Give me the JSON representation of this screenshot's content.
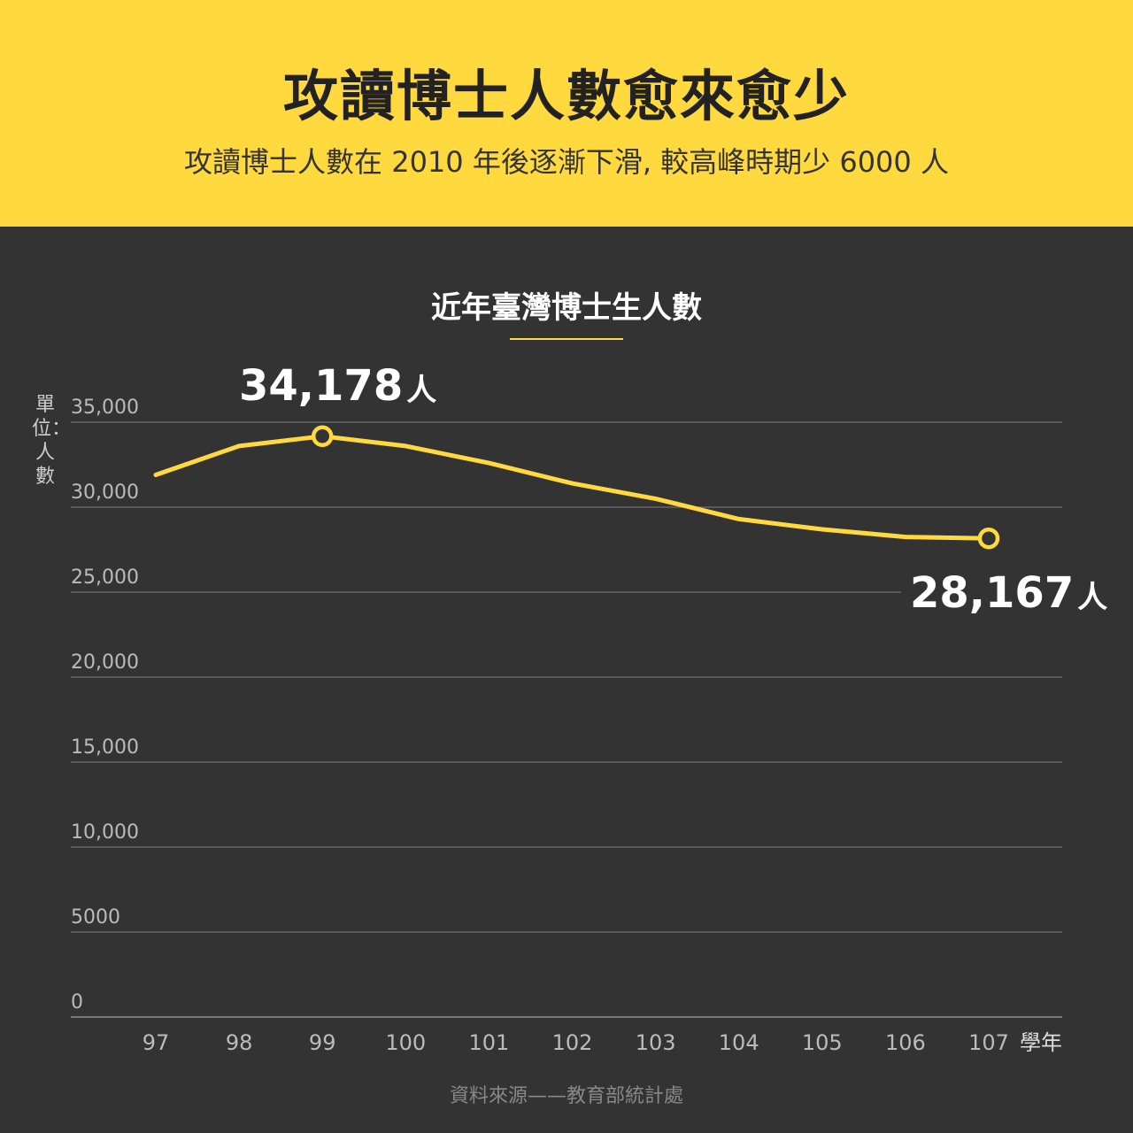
{
  "header": {
    "title": "攻讀博士人數愈來愈少",
    "subtitle": "攻讀博士人數在 2010 年後逐漸下滑, 較高峰時期少 6000 人"
  },
  "chart": {
    "title": "近年臺灣博士生人數",
    "unit_label": "單位：人數",
    "x_unit": "學年",
    "source": "資料來源——教育部統計處",
    "callouts": [
      {
        "number": "34,178",
        "unit": "人"
      },
      {
        "number": "28,167",
        "unit": "人"
      }
    ]
  },
  "colors": {
    "header_bg": "#FFD93D",
    "panel_bg": "#333333",
    "line": "#FFD93D",
    "grid": "#666666"
  },
  "chart_data": {
    "type": "line",
    "title": "近年臺灣博士生人數",
    "xlabel": "學年",
    "ylabel": "單位：人數",
    "x": [
      "97",
      "98",
      "99",
      "100",
      "101",
      "102",
      "103",
      "104",
      "105",
      "106",
      "107"
    ],
    "series": [
      {
        "values": [
          31900,
          33600,
          34178,
          33600,
          32600,
          31400,
          30500,
          29300,
          28700,
          28250,
          28167
        ]
      }
    ],
    "yticks": [
      0,
      5000,
      10000,
      15000,
      20000,
      25000,
      30000,
      35000
    ],
    "ytick_labels": [
      "0",
      "5000",
      "10,000",
      "15,000",
      "20,000",
      "25,000",
      "30,000",
      "35,000"
    ],
    "ylim": [
      0,
      35000
    ],
    "grid": true,
    "highlighted_points": [
      {
        "x": "99",
        "value": 34178,
        "label": "34,178人"
      },
      {
        "x": "107",
        "value": 28167,
        "label": "28,167人"
      }
    ]
  }
}
